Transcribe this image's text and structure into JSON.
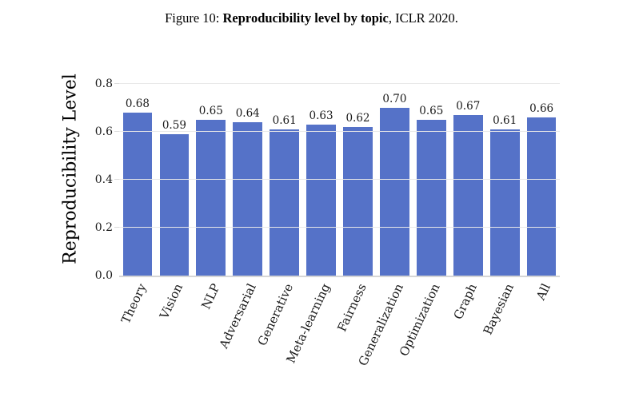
{
  "figure": {
    "caption_prefix": "Figure 10: ",
    "caption_bold": "Reproducibility level by topic",
    "caption_suffix": ", ICLR 2020."
  },
  "chart_data": {
    "type": "bar",
    "title": "",
    "xlabel": "",
    "ylabel": "Reproducibility Level",
    "categories": [
      "Theory",
      "Vision",
      "NLP",
      "Adversarial",
      "Generative",
      "Meta-learning",
      "Fairness",
      "Generalization",
      "Optimization",
      "Graph",
      "Bayesian",
      "All"
    ],
    "values": [
      0.68,
      0.59,
      0.65,
      0.64,
      0.61,
      0.63,
      0.62,
      0.7,
      0.65,
      0.67,
      0.61,
      0.66
    ],
    "value_labels": [
      "0.68",
      "0.59",
      "0.65",
      "0.64",
      "0.61",
      "0.63",
      "0.62",
      "0.70",
      "0.65",
      "0.67",
      "0.61",
      "0.66"
    ],
    "yticks": [
      0.0,
      0.2,
      0.4,
      0.6,
      0.8
    ],
    "ytick_labels": [
      "0.0",
      "0.2",
      "0.4",
      "0.6",
      "0.8"
    ],
    "ylim": [
      0,
      0.9
    ],
    "grid": true,
    "legend": false,
    "bar_color": "#5572c8",
    "gridline_color": "#e8e8e8",
    "axis_line_color": "#d6d6d6"
  }
}
